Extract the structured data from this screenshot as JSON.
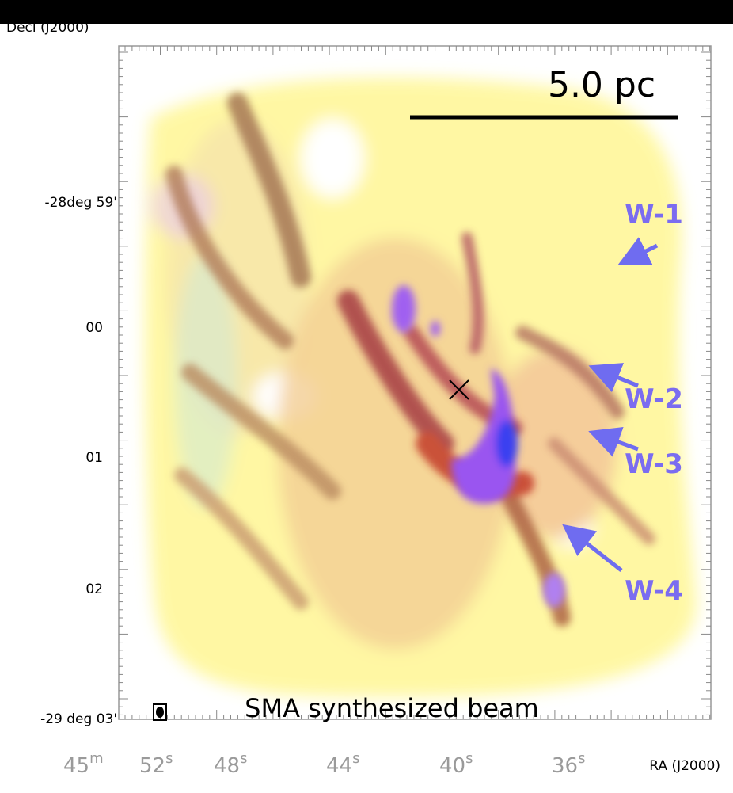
{
  "axes": {
    "y_label": "Decl (J2000)",
    "y_ticks": [
      "-28deg 59'",
      "00",
      "01",
      "02",
      "-29 deg 03'"
    ],
    "x_label": "RA (J2000)",
    "x_ticks": [
      {
        "number": "45",
        "unit": "m"
      },
      {
        "number": "52",
        "unit": "s"
      },
      {
        "number": "48",
        "unit": "s"
      },
      {
        "number": "44",
        "unit": "s"
      },
      {
        "number": "40",
        "unit": "s"
      },
      {
        "number": "36",
        "unit": "s"
      }
    ]
  },
  "annotations": {
    "scale_bar": "5.0 pc",
    "features": [
      "W-1",
      "W-2",
      "W-3",
      "W-4"
    ],
    "beam": "SMA synthesized beam"
  }
}
